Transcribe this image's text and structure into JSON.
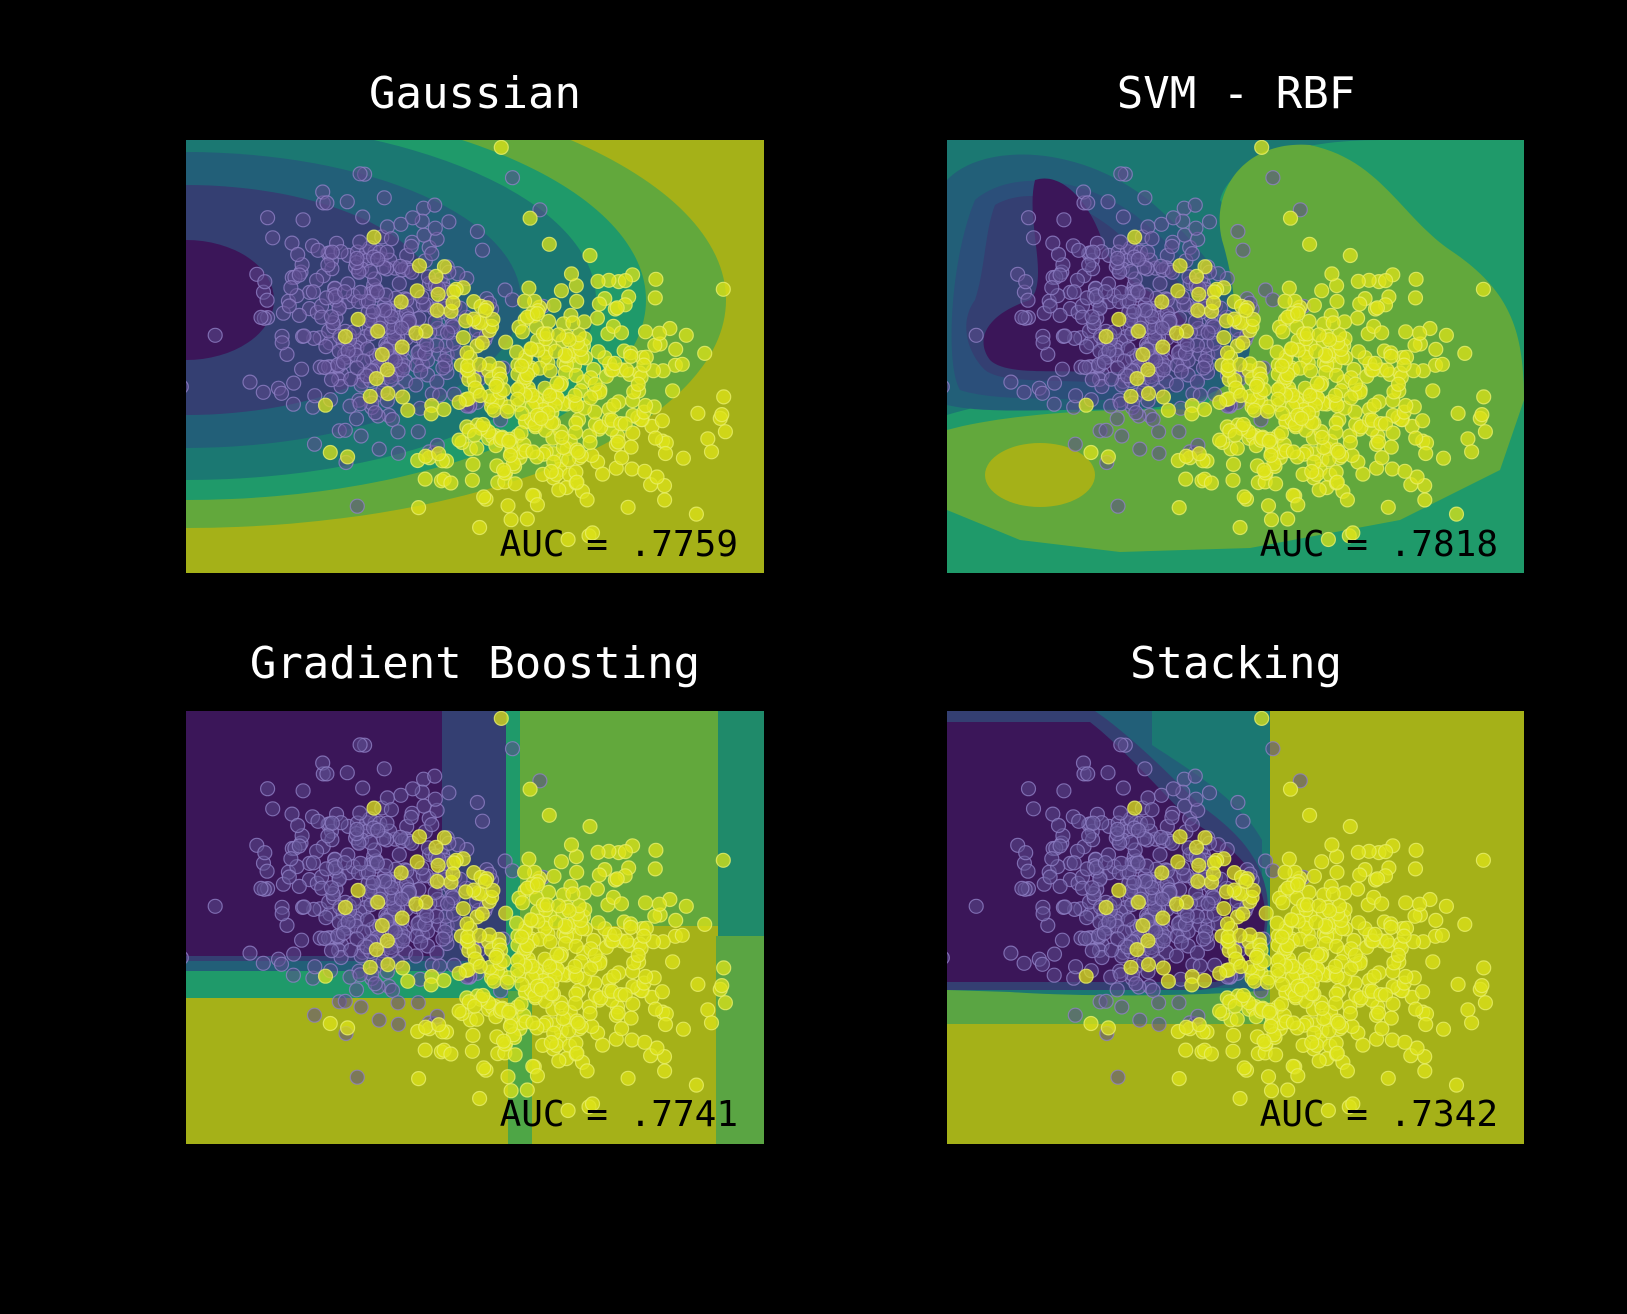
{
  "chart_data": [
    {
      "type": "scatter",
      "title": "Gaussian",
      "annotation": "AUC = .7759",
      "auc": 0.7759,
      "xlabel": "",
      "ylabel": "",
      "axes_visible": false,
      "background": "filled decision contour (viridis)",
      "classes": [
        {
          "name": "class 0",
          "color": "#5b4a8c"
        },
        {
          "name": "class 1",
          "color": "#dde318"
        }
      ]
    },
    {
      "type": "scatter",
      "title": "SVM - RBF",
      "annotation": "AUC = .7818",
      "auc": 0.7818,
      "xlabel": "",
      "ylabel": "",
      "axes_visible": false,
      "background": "filled decision contour (viridis)",
      "classes": [
        {
          "name": "class 0",
          "color": "#5b4a8c"
        },
        {
          "name": "class 1",
          "color": "#dde318"
        }
      ]
    },
    {
      "type": "scatter",
      "title": "Gradient Boosting",
      "annotation": "AUC = .7741",
      "auc": 0.7741,
      "xlabel": "",
      "ylabel": "",
      "axes_visible": false,
      "background": "filled decision contour (viridis)",
      "classes": [
        {
          "name": "class 0",
          "color": "#5b4a8c"
        },
        {
          "name": "class 1",
          "color": "#dde318"
        }
      ]
    },
    {
      "type": "scatter",
      "title": "Stacking",
      "annotation": "AUC = .7342",
      "auc": 0.7342,
      "xlabel": "",
      "ylabel": "",
      "axes_visible": false,
      "background": "filled decision contour (viridis)",
      "classes": [
        {
          "name": "class 0",
          "color": "#5b4a8c"
        },
        {
          "name": "class 1",
          "color": "#dde318"
        }
      ]
    }
  ],
  "colors": {
    "figure_background": "#000000",
    "title_color": "#ffffff",
    "annotation_color": "#000000",
    "viridis_dark": "#3b1659",
    "viridis_yellow": "#a5b118"
  }
}
